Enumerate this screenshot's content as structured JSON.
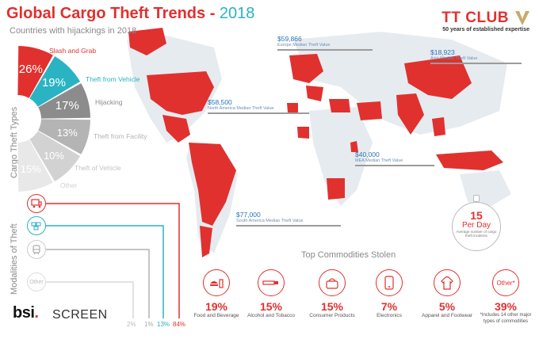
{
  "header": {
    "title_main": "Global Cargo Theft Trends",
    "title_sep": " - ",
    "title_year": "2018",
    "subtitle": "Countries with hijackings in 2018"
  },
  "logo": {
    "name": "TT CLUB",
    "tagline": "50 years of established expertise"
  },
  "theft_types": {
    "section_label": "Cargo Theft Types",
    "items": [
      {
        "pct": "26%",
        "label": "Slash and Grab",
        "value": 26,
        "color": "#e0312f"
      },
      {
        "pct": "19%",
        "label": "Theft from Vehicle",
        "value": 19,
        "color": "#2ab3c2"
      },
      {
        "pct": "17%",
        "label": "Hijacking",
        "value": 17,
        "color": "#8c8c8c"
      },
      {
        "pct": "13%",
        "label": "Theft from Facility",
        "value": 13,
        "color": "#b4b4b4"
      },
      {
        "pct": "10%",
        "label": "Theft of Vehicle",
        "value": 10,
        "color": "#d2d2d2"
      },
      {
        "pct": "15%",
        "label": "Other",
        "value": 15,
        "color": "#e8e8e8"
      }
    ]
  },
  "modalities": {
    "section_label": "Modalities of Theft",
    "items": [
      {
        "name": "Truck",
        "pct": "84%",
        "color": "#e0312f",
        "icon": "truck-icon"
      },
      {
        "name": "Sea",
        "pct": "13%",
        "color": "#2ab3c2",
        "icon": "container-icon"
      },
      {
        "name": "Rail",
        "pct": "1%",
        "color": "#b4b4b4",
        "icon": "train-icon"
      },
      {
        "name": "Other",
        "pct": "2%",
        "color": "#d2d2d2",
        "icon": "other-icon",
        "icon_text": "Other"
      }
    ]
  },
  "median_values": {
    "europe": {
      "value": "$59,866",
      "label": "Europe Median Theft Value"
    },
    "asia": {
      "value": "$18,923",
      "label": "Asia Median Theft Value"
    },
    "north_america": {
      "value": "$58,500",
      "label": "North America Median Theft Value"
    },
    "mea": {
      "value": "$40,000",
      "label": "MEA Median Theft Value"
    },
    "south_america": {
      "value": "$77,000",
      "label": "South America Median Theft Value"
    }
  },
  "per_day": {
    "number": "15",
    "unit": "Per Day",
    "note": "Average number of cargo theft incidents"
  },
  "commodities": {
    "title": "Top Commodities Stolen",
    "items": [
      {
        "pct": "19%",
        "label": "Food and Beverage",
        "icon": "food-icon"
      },
      {
        "pct": "15%",
        "label": "Alcohol and Tobacco",
        "icon": "cigarette-icon"
      },
      {
        "pct": "15%",
        "label": "Consumer Products",
        "icon": "handbag-icon"
      },
      {
        "pct": "7%",
        "label": "Electronics",
        "icon": "phone-icon"
      },
      {
        "pct": "5%",
        "label": "Apparel and Footwear",
        "icon": "hoodie-icon"
      },
      {
        "pct": "39%",
        "label": "*Includes 14 other major types of commodities",
        "icon": "other-icon",
        "icon_text": "Other*"
      }
    ]
  },
  "footer": {
    "bsi_text": "bsi",
    "bsi_dot": ".",
    "screen_text": "SCREEN"
  },
  "colors": {
    "red": "#e0312f",
    "teal": "#2ab3c2",
    "stat_blue": "#2a74b8",
    "map_grey": "#e9eef2"
  }
}
